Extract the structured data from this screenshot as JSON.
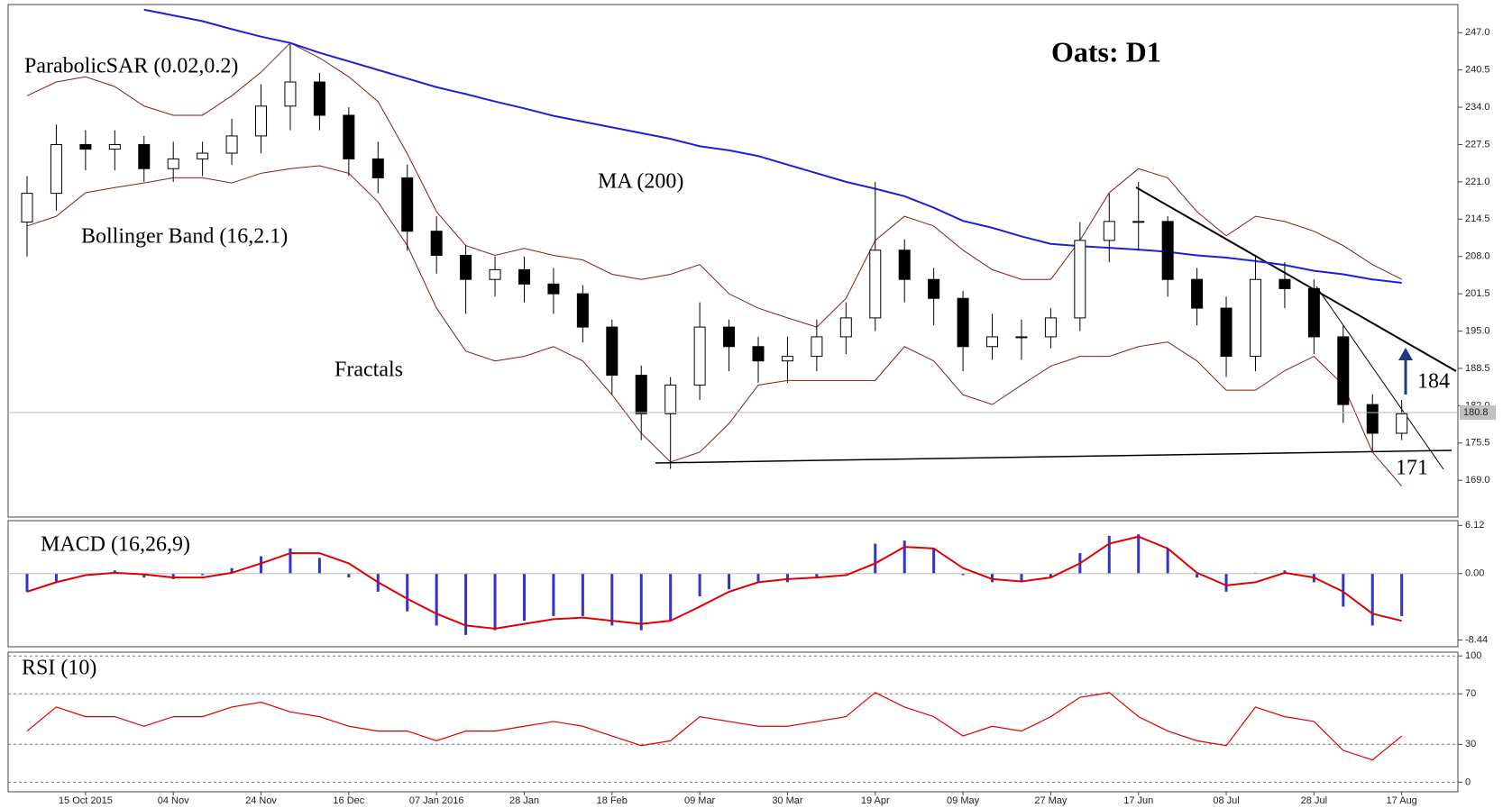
{
  "chart_data": [
    {
      "type": "candlestick",
      "title": "Oats: D1",
      "open": [
        214,
        219,
        227.5,
        226.7,
        227.5,
        223.3,
        225,
        226,
        229,
        234.2,
        238.4,
        232.6,
        225,
        221.7,
        212.4,
        208.2,
        204,
        205.7,
        203.2,
        201.5,
        195.7,
        187.3,
        180.6,
        185.6,
        195.7,
        192.3,
        189.8,
        190.6,
        194,
        197.3,
        209.1,
        204,
        200.7,
        192.3,
        194,
        194,
        197.3,
        210.8,
        214.1,
        214.1,
        204,
        199,
        190.6,
        204,
        202.4,
        194,
        182.2,
        177.2
      ],
      "high": [
        222,
        231,
        230,
        230,
        229,
        228,
        228,
        232,
        238,
        245,
        240,
        234,
        228,
        224,
        215,
        210,
        208,
        208,
        206,
        203,
        197,
        189,
        187,
        200,
        197,
        194,
        194,
        197,
        200,
        221,
        211,
        206,
        202,
        198,
        197,
        199,
        214,
        219,
        221,
        215,
        206,
        201,
        208,
        207,
        204,
        196,
        184,
        183
      ],
      "low": [
        208,
        216,
        223,
        223,
        221,
        221,
        222,
        224,
        226,
        230,
        230,
        222,
        219,
        209,
        205,
        198,
        201,
        200,
        198,
        193,
        184,
        176,
        171,
        183,
        188,
        186,
        186,
        188,
        191,
        195,
        200,
        196,
        188,
        190,
        190,
        192,
        195,
        207,
        209,
        201,
        196,
        187,
        188,
        199,
        191,
        179,
        174,
        176
      ],
      "close": [
        219,
        227.5,
        226.7,
        227.5,
        223.3,
        225,
        226,
        229,
        234.2,
        238.4,
        232.6,
        225,
        221.7,
        212.4,
        208.2,
        204,
        205.7,
        203.2,
        201.5,
        195.7,
        187.3,
        180.6,
        185.6,
        195.7,
        192.3,
        189.8,
        190.6,
        194,
        197.3,
        209.1,
        204,
        200.7,
        192.3,
        194,
        194,
        197.3,
        210.8,
        214.1,
        214.1,
        204,
        199,
        190.6,
        204,
        202.4,
        194,
        182.2,
        177.2,
        180.6
      ],
      "ma": {
        "name": "MA (200)",
        "color": "#1f1fd6",
        "values": [
          null,
          null,
          null,
          null,
          251,
          250,
          249,
          247.6,
          246.3,
          245.2,
          243.5,
          242,
          240.5,
          239,
          237.5,
          236.3,
          235,
          233.8,
          232.5,
          231.5,
          230.5,
          229.5,
          228.5,
          227.2,
          226.5,
          225.5,
          224,
          222.5,
          221,
          219.8,
          218.5,
          216.5,
          214.2,
          213,
          211.5,
          210.2,
          209.8,
          209.5,
          209.2,
          208.8,
          208.2,
          207.8,
          207.2,
          206.5,
          205.5,
          204.9,
          204,
          203.4
        ]
      },
      "bollinger": {
        "name": "Bollinger Band (16,2.1)",
        "color": "#8b1a1a",
        "upper": [
          236,
          238.4,
          239.3,
          237.6,
          234.2,
          232.6,
          232.6,
          236,
          240.1,
          245.2,
          242.6,
          239.3,
          235,
          225.9,
          215.8,
          209.9,
          208.2,
          209.4,
          208.2,
          207.4,
          204.9,
          204,
          204.9,
          206.6,
          201.5,
          199,
          197.3,
          195.7,
          200.7,
          210.8,
          215,
          213.3,
          209.1,
          205.7,
          204,
          204,
          210.8,
          219.1,
          223.3,
          221.7,
          215.8,
          211.6,
          215,
          214.1,
          212.4,
          209.9,
          206.6,
          204
        ],
        "lower": [
          213.3,
          215,
          219.1,
          220,
          220.8,
          221.7,
          221.7,
          220.8,
          222.5,
          223.3,
          223.8,
          222.5,
          217.5,
          209.9,
          199,
          191.5,
          189.8,
          190.6,
          192.3,
          189.8,
          183.9,
          177.2,
          172.2,
          173.9,
          178.9,
          185.6,
          186.4,
          186.4,
          186.4,
          186.4,
          192.3,
          189.8,
          183.9,
          182.2,
          185.6,
          188.9,
          190.6,
          190.6,
          192.3,
          193.1,
          189.8,
          184.7,
          184.7,
          188.1,
          190.6,
          185.6,
          173.9,
          168
        ]
      },
      "labels": [
        "ParabolicSAR (0.02,0.2)",
        "Fractals"
      ],
      "annotations": [
        "184",
        "171"
      ],
      "last_price": {
        "value": 180.8,
        "label": "180.8"
      },
      "ylim": [
        162.6,
        251.9
      ],
      "yticks": [
        {
          "value": 169,
          "label": "169.0"
        },
        {
          "value": 175.5,
          "label": "175.5"
        },
        {
          "value": 182,
          "label": "182.0"
        },
        {
          "value": 188.5,
          "label": "188.5"
        },
        {
          "value": 195,
          "label": "195.0"
        },
        {
          "value": 201.5,
          "label": "201.5"
        },
        {
          "value": 208,
          "label": "208.0"
        },
        {
          "value": 214.5,
          "label": "214.5"
        },
        {
          "value": 221,
          "label": "221.0"
        },
        {
          "value": 227.5,
          "label": "227.5"
        },
        {
          "value": 234,
          "label": "234.0"
        },
        {
          "value": 240.5,
          "label": "240.5"
        },
        {
          "value": 247,
          "label": "247.0"
        }
      ]
    },
    {
      "type": "macd",
      "title": "MACD (16,26,9)",
      "histogram": {
        "color": "#3333cc",
        "values": [
          -2.3,
          -1.1,
          0,
          0.4,
          -0.5,
          -0.7,
          -0.2,
          0.7,
          2.2,
          3.2,
          2,
          -0.5,
          -2.3,
          -4.8,
          -6.6,
          -7.8,
          -7.2,
          -6,
          -5.4,
          -5.4,
          -6.6,
          -7.2,
          -6,
          -2.9,
          -2,
          -1.1,
          -1.1,
          -0.5,
          0.1,
          3.8,
          4.2,
          3.2,
          -0.2,
          -1.1,
          -1.1,
          -0.5,
          2.6,
          4.8,
          5,
          3.2,
          -0.5,
          -2.3,
          0.1,
          0.4,
          -1.1,
          -4.2,
          -6.6,
          -5.4
        ]
      },
      "signal": {
        "color": "#e00000",
        "values": [
          -2.3,
          -1.1,
          -0.2,
          0.1,
          -0.1,
          -0.5,
          -0.5,
          0.1,
          1.3,
          2.6,
          2.6,
          1.3,
          -1.1,
          -3.2,
          -5.1,
          -6.6,
          -7,
          -6.4,
          -5.8,
          -5.6,
          -6,
          -6.4,
          -6,
          -4.2,
          -2.3,
          -1.1,
          -0.7,
          -0.5,
          -0.2,
          1.3,
          3.4,
          3.2,
          0.7,
          -0.7,
          -1,
          -0.5,
          1.3,
          3.8,
          4.7,
          3.2,
          0.1,
          -1.5,
          -1.1,
          0.1,
          -0.5,
          -2.3,
          -5.1,
          -6
        ]
      },
      "ylim": [
        -9.3,
        6.73
      ],
      "yticks": [
        6.12,
        {
          "value": 0,
          "label": "0.00"
        },
        -8.44
      ]
    },
    {
      "type": "line",
      "title": "RSI (10)",
      "color": "#e00000",
      "categories": [
        null,
        null,
        "15 Oct 2015",
        null,
        null,
        "04 Nov",
        null,
        null,
        "24 Nov",
        null,
        null,
        "16 Dec",
        null,
        null,
        "07 Jan 2016",
        null,
        null,
        "28 Jan",
        null,
        null,
        "18 Feb",
        null,
        null,
        "09 Mar",
        null,
        null,
        "30 Mar",
        null,
        null,
        "19 Apr",
        null,
        null,
        "09 May",
        null,
        null,
        "27 May",
        null,
        null,
        "17 Jun",
        null,
        null,
        "08 Jul",
        null,
        null,
        "28 Jul",
        null,
        null,
        "17 Aug"
      ],
      "values": [
        40.5,
        59.5,
        51.9,
        51.9,
        44.3,
        51.9,
        51.9,
        59.5,
        63.4,
        55.7,
        51.9,
        44.3,
        40.5,
        40.5,
        32.8,
        40.5,
        40.5,
        44.3,
        48.1,
        44.3,
        36.6,
        29,
        32.8,
        51.9,
        48.1,
        44.3,
        44.3,
        48.1,
        51.9,
        71,
        59.5,
        51.9,
        36.6,
        44.3,
        40.5,
        51.9,
        67.2,
        71,
        51.9,
        40.5,
        32.8,
        29,
        59.5,
        51.9,
        48.1,
        25.2,
        17.6,
        36.6
      ],
      "ylim": [
        -7.6,
        103
      ],
      "yticks": [
        0,
        30,
        70,
        100
      ],
      "grid": true
    }
  ]
}
